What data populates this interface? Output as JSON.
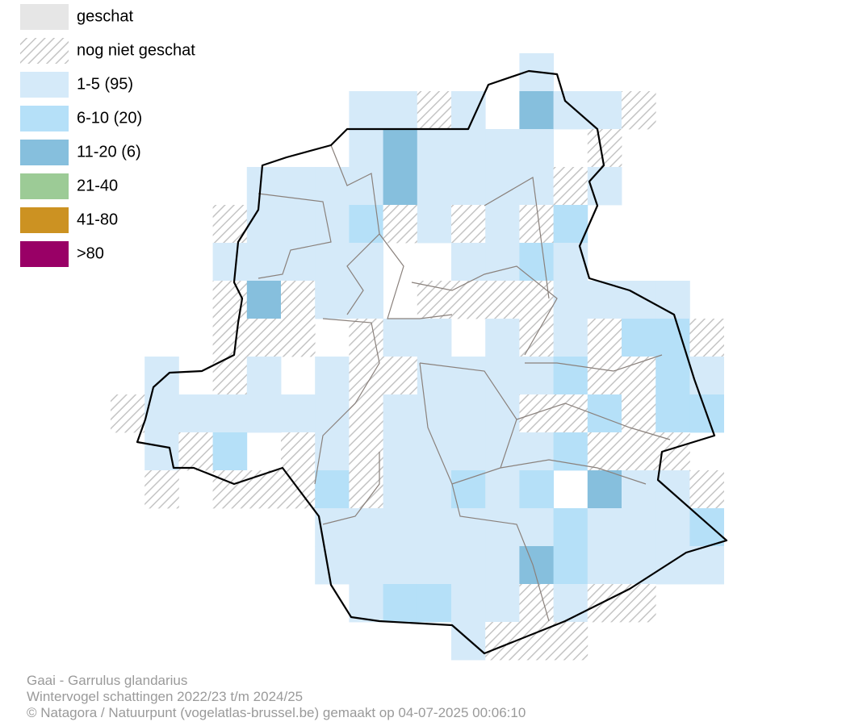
{
  "legend": [
    "geschat",
    "nog niet geschat",
    "1-5 (95)",
    "6-10 (20)",
    "11-20 (6)",
    "21-40",
    "41-80",
    ">80"
  ],
  "footer": [
    "Gaai - Garrulus glandarius",
    "Wintervogel schattingen 2022/23 t/m 2024/25",
    "© Natagora / Natuurpunt (vogelatlas-brussel.be) gemaakt op 04-07-2025 00:06:10"
  ]
}
